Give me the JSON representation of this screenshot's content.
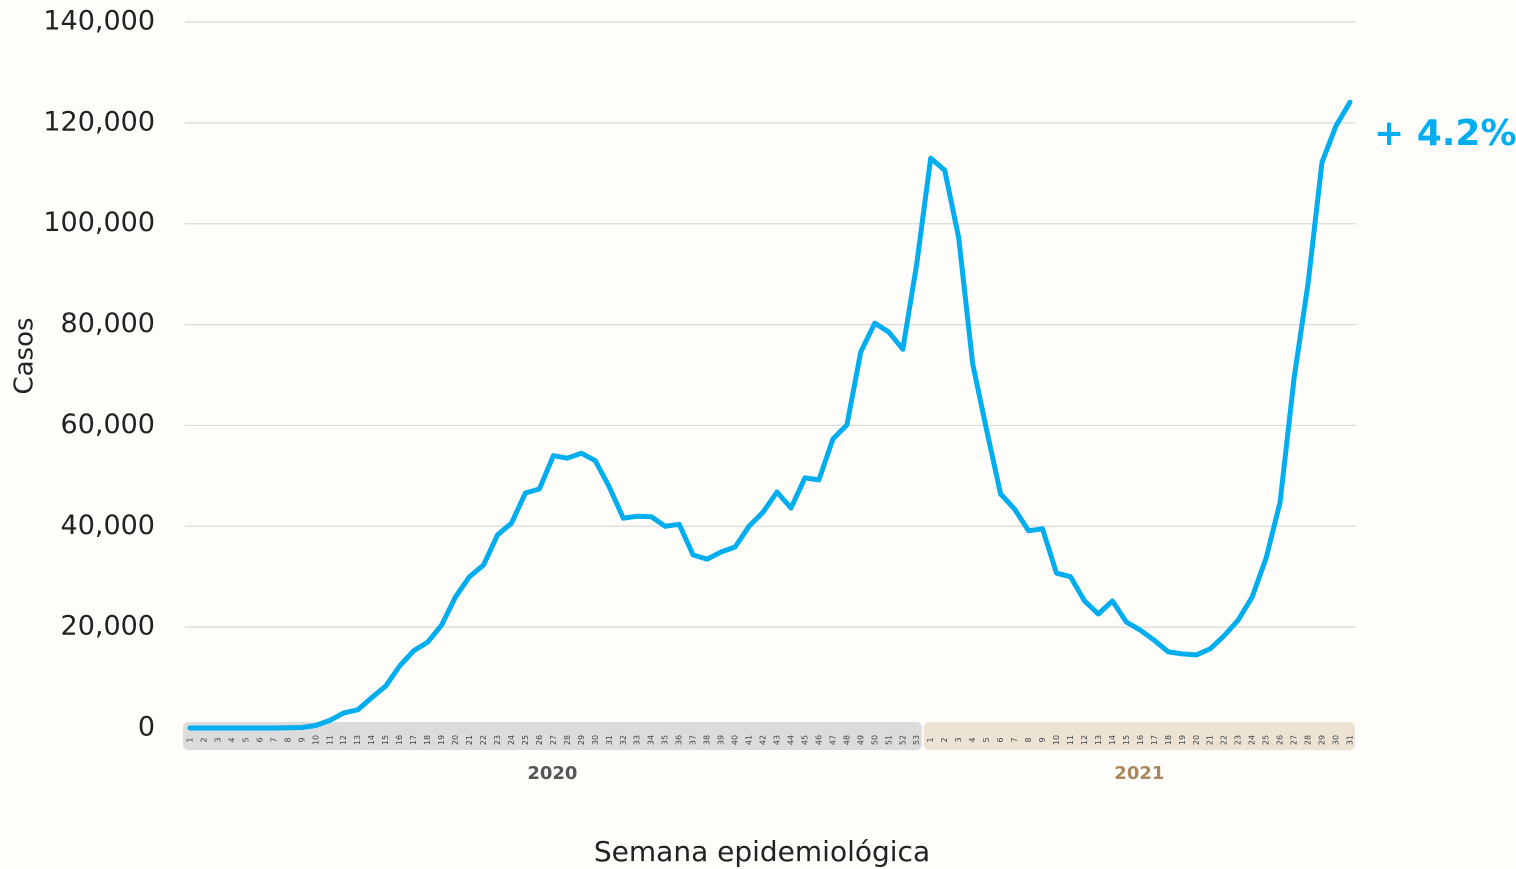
{
  "chart_data": {
    "type": "line",
    "y_label": "Casos",
    "x_label": "Semana epidemiológica",
    "annotation": "+ 4.2%",
    "groups": [
      "2020",
      "2021"
    ],
    "categories": [
      "1",
      "2",
      "3",
      "4",
      "5",
      "6",
      "7",
      "8",
      "9",
      "10",
      "11",
      "12",
      "13",
      "14",
      "15",
      "16",
      "17",
      "18",
      "19",
      "20",
      "21",
      "22",
      "23",
      "24",
      "25",
      "26",
      "27",
      "28",
      "29",
      "30",
      "31",
      "32",
      "33",
      "34",
      "35",
      "36",
      "37",
      "38",
      "39",
      "40",
      "41",
      "42",
      "43",
      "44",
      "45",
      "46",
      "47",
      "48",
      "49",
      "50",
      "51",
      "52",
      "53",
      "1",
      "2",
      "3",
      "4",
      "5",
      "6",
      "7",
      "8",
      "9",
      "10",
      "11",
      "12",
      "13",
      "14",
      "15",
      "16",
      "17",
      "18",
      "19",
      "20",
      "21",
      "22",
      "23",
      "24",
      "25",
      "26",
      "27",
      "28",
      "29",
      "30",
      "31"
    ],
    "series": [
      {
        "name": "Casos",
        "color": "#00aeef",
        "values": [
          0,
          0,
          0,
          0,
          0,
          0,
          0,
          50,
          100,
          500,
          1500,
          3000,
          3600,
          6000,
          8300,
          12300,
          15300,
          17000,
          20400,
          26000,
          30000,
          32300,
          38300,
          40600,
          46600,
          47400,
          54000,
          53500,
          54500,
          53000,
          47800,
          41600,
          42000,
          41900,
          40000,
          40400,
          34300,
          33500,
          34900,
          35900,
          40000,
          42800,
          46800,
          43600,
          49600,
          49200,
          57300,
          60100,
          74600,
          80300,
          78500,
          75100,
          92000,
          113000,
          110600,
          97200,
          72200,
          59100,
          46400,
          43400,
          39100,
          39500,
          30700,
          30000,
          25200,
          22600,
          25200,
          21000,
          19400,
          17400,
          15100,
          14700,
          14500,
          15700,
          18300,
          21400,
          26000,
          33700,
          44800,
          69400,
          88200,
          112200,
          119400,
          124100
        ]
      }
    ],
    "ylim": [
      0,
      140000
    ],
    "yticks": [
      0,
      {
        "value": 20000,
        "label": "20,000"
      },
      {
        "value": 40000,
        "label": "40,000"
      },
      {
        "value": 60000,
        "label": "60,000"
      },
      {
        "value": 80000,
        "label": "80,000"
      },
      {
        "value": 100000,
        "label": "100,000"
      },
      {
        "value": 120000,
        "label": "120,000"
      },
      {
        "value": 140000,
        "label": "140,000"
      }
    ],
    "grid": true
  }
}
